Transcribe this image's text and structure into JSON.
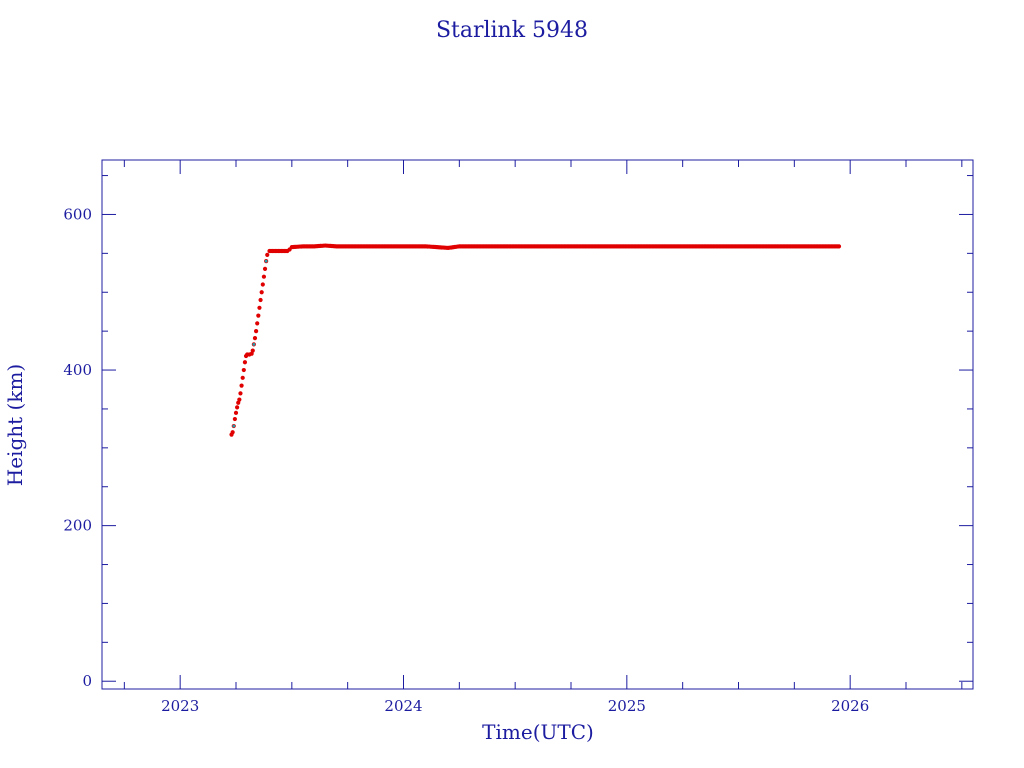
{
  "chart_data": {
    "type": "scatter",
    "title": "Starlink 5948",
    "xlabel": "Time(UTC)",
    "ylabel": "Height (km)",
    "xlim": [
      2022.65,
      2026.55
    ],
    "ylim": [
      -10,
      670
    ],
    "x_ticks": [
      2023,
      2024,
      2025,
      2026
    ],
    "y_ticks": [
      0,
      200,
      400,
      600
    ],
    "grid": false,
    "legend": "none",
    "colors": {
      "axis": "#1c1ca0",
      "points": "#e00000",
      "highlight": "#20a0b0"
    },
    "series": [
      {
        "points": [
          [
            2023.23,
            317
          ],
          [
            2023.235,
            320
          ],
          [
            2023.24,
            328
          ],
          [
            2023.245,
            337
          ],
          [
            2023.25,
            345
          ],
          [
            2023.255,
            352
          ],
          [
            2023.26,
            358
          ],
          [
            2023.265,
            362
          ],
          [
            2023.27,
            370
          ],
          [
            2023.275,
            380
          ],
          [
            2023.28,
            390
          ],
          [
            2023.285,
            400
          ],
          [
            2023.29,
            410
          ],
          [
            2023.295,
            418
          ],
          [
            2023.3,
            420
          ],
          [
            2023.31,
            420
          ],
          [
            2023.32,
            421
          ],
          [
            2023.325,
            425
          ],
          [
            2023.33,
            433
          ],
          [
            2023.335,
            441
          ],
          [
            2023.34,
            450
          ],
          [
            2023.345,
            460
          ],
          [
            2023.35,
            470
          ],
          [
            2023.355,
            480
          ],
          [
            2023.36,
            490
          ],
          [
            2023.365,
            500
          ],
          [
            2023.37,
            510
          ],
          [
            2023.375,
            520
          ],
          [
            2023.38,
            530
          ],
          [
            2023.385,
            540
          ],
          [
            2023.39,
            548
          ],
          [
            2023.4,
            553
          ],
          [
            2023.42,
            553
          ],
          [
            2023.44,
            553
          ],
          [
            2023.46,
            553
          ],
          [
            2023.48,
            553
          ],
          [
            2023.49,
            555
          ],
          [
            2023.5,
            558
          ],
          [
            2023.55,
            559
          ],
          [
            2023.6,
            559
          ],
          [
            2023.65,
            560
          ],
          [
            2023.7,
            559
          ],
          [
            2023.8,
            559
          ],
          [
            2023.9,
            559
          ],
          [
            2024.0,
            559
          ],
          [
            2024.1,
            559
          ],
          [
            2024.15,
            558
          ],
          [
            2024.2,
            557
          ],
          [
            2024.25,
            559
          ],
          [
            2024.4,
            559
          ],
          [
            2024.6,
            559
          ],
          [
            2024.8,
            559
          ],
          [
            2025.0,
            559
          ],
          [
            2025.2,
            559
          ],
          [
            2025.4,
            559
          ],
          [
            2025.6,
            559
          ],
          [
            2025.8,
            559
          ],
          [
            2025.95,
            559
          ]
        ]
      }
    ]
  }
}
